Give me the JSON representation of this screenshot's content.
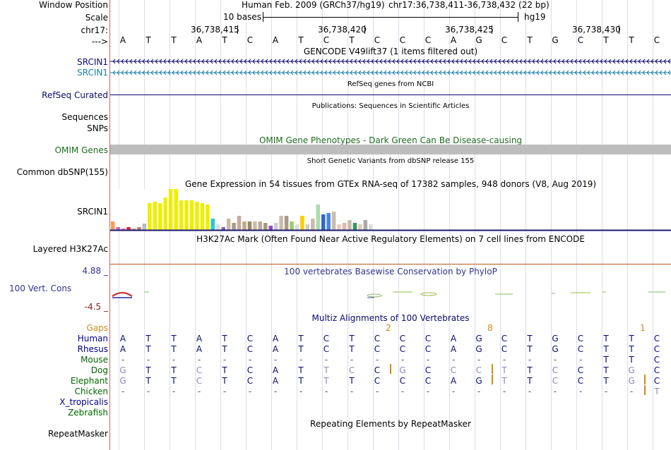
{
  "labels": {
    "window_position": "Window Position",
    "scale": "Scale",
    "chrom": "chr17:",
    "strand": "--->",
    "gencode1": "SRCIN1",
    "gencode2": "SRCIN1",
    "refseq": "RefSeq Curated",
    "sequences": "Sequences",
    "snps": "SNPs",
    "omim": "OMIM Genes",
    "dbsnp": "Common dbSNP(155)",
    "gtex": "SRCIN1",
    "h3k27ac": "Layered H3K27Ac",
    "cons_top": "4.88 _",
    "cons": "100 Vert. Cons",
    "cons_bottom": "-4.5 _",
    "repeatmasker": "RepeatMasker"
  },
  "header": {
    "assembly": "Human Feb. 2009 (GRCh37/hg19)",
    "position": "chr17:36,738,411-36,738,432 (22 bp)",
    "scale_text": "10 bases",
    "scale_db": "hg19",
    "coords": [
      "36,738,415",
      "36,738,420",
      "36,738,425",
      "36,738,430"
    ]
  },
  "sequence": [
    "A",
    "T",
    "T",
    "A",
    "T",
    "C",
    "A",
    "T",
    "C",
    "T",
    "C",
    "C",
    "C",
    "A",
    "G",
    "C",
    "T",
    "G",
    "C",
    "T",
    "T",
    "C"
  ],
  "tracks": {
    "gencode_title": "GENCODE V49lift37 (1 items filtered out)",
    "refseq_title": "RefSeq genes from NCBI",
    "publications_title": "Publications: Sequences in Scientific Articles",
    "omim_title": "OMIM Gene Phenotypes - Dark Green Can Be Disease-causing",
    "dbsnp_title": "Short Genetic Variants from dbSNP release 155",
    "gtex_title": "Gene Expression in 54 tissues from GTEx RNA-seq of 17382 samples, 948 donors (V8, Aug 2019)",
    "h3k27ac_title": "H3K27Ac Mark (Often Found Near Active Regulatory Elements) on 7 cell lines from ENCODE",
    "phylop_title": "100 vertebrates Basewise Conservation by PhyloP",
    "multiz_title": "Multiz Alignments of 100 Vertebrates",
    "repeat_title": "Repeating Elements by RepeatMasker"
  },
  "gtex_values": [
    12,
    4,
    2,
    4,
    2,
    4,
    9,
    38,
    40,
    38,
    46,
    58,
    58,
    42,
    42,
    42,
    40,
    38,
    36,
    16,
    8,
    4,
    16,
    10,
    20,
    12,
    12,
    12,
    12,
    10,
    6,
    10,
    20,
    20,
    12,
    8,
    20,
    8,
    16,
    36,
    22,
    24,
    26,
    8,
    10,
    14,
    10,
    8,
    14,
    8
  ],
  "gtex_colors": [
    "#f2a055",
    "#cc66cc",
    "#ff66aa",
    "#cc3333",
    "#ee8888",
    "#aa8866",
    "#bbbbbb",
    "#eeee00",
    "#eeee00",
    "#eeee00",
    "#eeee00",
    "#eeee00",
    "#eeee00",
    "#eeee00",
    "#eeee00",
    "#eeee00",
    "#eeee00",
    "#eeee00",
    "#eeee00",
    "#22cccc",
    "#dddddd",
    "#8866aa",
    "#ccbbaa",
    "#aa9988",
    "#ccaa99",
    "#bbaa88",
    "#998866",
    "#ccbbaa",
    "#bbaa99",
    "#aa9977",
    "#9944cc",
    "#cccccc",
    "#ccbbaa",
    "#aa9988",
    "#99cc66",
    "#dddddd",
    "#ffcc00",
    "#cccccc",
    "#ccbbaa",
    "#aaddaa",
    "#3366cc",
    "#4488dd",
    "#ccbbaa",
    "#eeccbb",
    "#ddbbaa",
    "#ccbbaa",
    "#339966",
    "#ddccbb",
    "#aaaaaa",
    "#dddddd"
  ],
  "gaps": {
    "label": "Gaps",
    "marks": [
      {
        "col": 10,
        "text": "2"
      },
      {
        "col": 14,
        "text": "8"
      },
      {
        "col": 20,
        "text": "1"
      }
    ]
  },
  "multiz": [
    {
      "species": "Human",
      "color": "#000088",
      "bases": [
        "A",
        "T",
        "T",
        "A",
        "T",
        "C",
        "A",
        "T",
        "C",
        "T",
        "C",
        "C",
        "C",
        "A",
        "G",
        "C",
        "T",
        "G",
        "C",
        "T",
        "T",
        "C"
      ]
    },
    {
      "species": "Rhesus",
      "color": "#000088",
      "bases": [
        "A",
        "T",
        "T",
        "A",
        "T",
        "C",
        "A",
        "T",
        "C",
        "T",
        "C",
        "C",
        "C",
        "A",
        "G",
        "C",
        "T",
        "G",
        "C",
        "T",
        "T",
        "C"
      ]
    },
    {
      "species": "Mouse",
      "color": "#006600",
      "bases": [
        "-",
        "-",
        "-",
        "-",
        "-",
        "-",
        "-",
        "-",
        "-",
        "-",
        "-",
        "-",
        "-",
        "-",
        "-",
        "-",
        "-",
        "-",
        "-",
        "T",
        "T",
        "C"
      ]
    },
    {
      "species": "Dog",
      "color": "#006600",
      "bases": [
        "G",
        "T",
        "T",
        "C",
        "T",
        "C",
        "A",
        "T",
        "T",
        "C",
        "C",
        "G",
        "C",
        "C",
        "C",
        "T",
        "T",
        "C",
        "C",
        "T",
        "G",
        "C"
      ]
    },
    {
      "species": "Elephant",
      "color": "#006600",
      "bases": [
        "G",
        "T",
        "T",
        "C",
        "T",
        "C",
        "A",
        "T",
        "T",
        "T",
        "C",
        "C",
        "C",
        "A",
        "G",
        "T",
        "T",
        "C",
        "C",
        "T",
        "G",
        "C"
      ]
    },
    {
      "species": "Chicken",
      "color": "#006600",
      "bases": [
        "-",
        "-",
        "-",
        "-",
        "-",
        "-",
        "-",
        "-",
        "-",
        "-",
        "-",
        "-",
        "-",
        "-",
        "-",
        "-",
        "-",
        "-",
        "-",
        "-",
        "-",
        "T"
      ]
    },
    {
      "species": "X_tropicalis",
      "color": "#000088",
      "bases": []
    },
    {
      "species": "Zebrafish",
      "color": "#006600",
      "bases": []
    }
  ]
}
